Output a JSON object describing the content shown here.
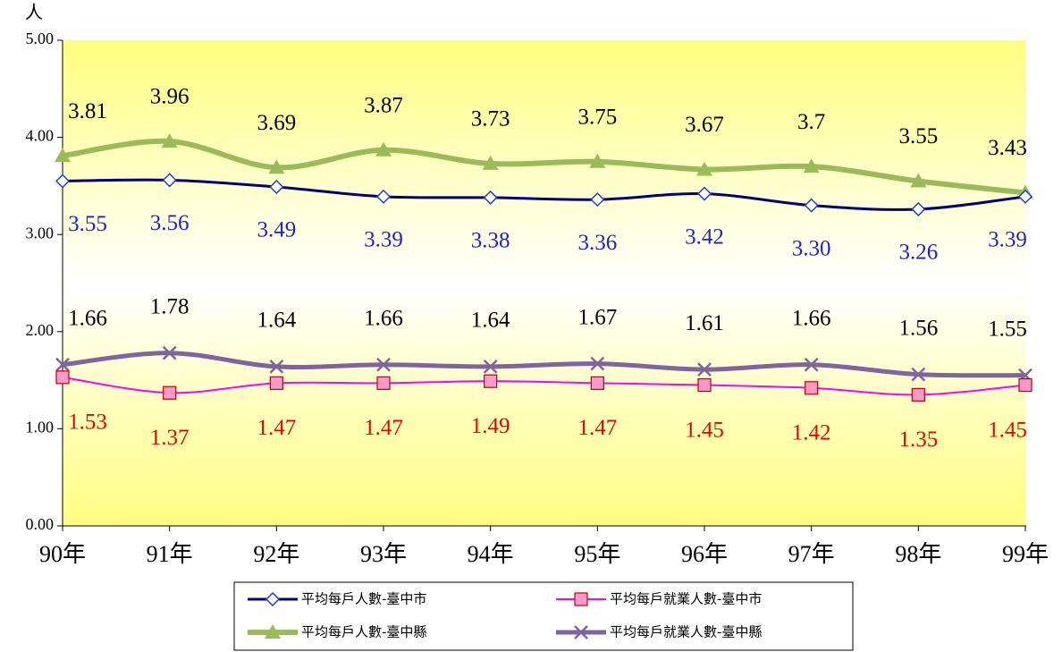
{
  "chart_data": {
    "type": "line",
    "y_axis_label": "人",
    "categories": [
      "90年",
      "91年",
      "92年",
      "93年",
      "94年",
      "95年",
      "96年",
      "97年",
      "98年",
      "99年"
    ],
    "ylim": [
      0,
      5
    ],
    "yticks": [
      {
        "value": 0,
        "label": "0.00"
      },
      {
        "value": 1,
        "label": "1.00"
      },
      {
        "value": 2,
        "label": "2.00"
      },
      {
        "value": 3,
        "label": "3.00"
      },
      {
        "value": 4,
        "label": "4.00"
      },
      {
        "value": 5,
        "label": "5.00"
      }
    ],
    "series": [
      {
        "name": "平均每戶人數-臺中市",
        "color": "#000080",
        "marker": "diamond",
        "values": [
          3.55,
          3.56,
          3.49,
          3.39,
          3.38,
          3.36,
          3.42,
          3.3,
          3.26,
          3.39
        ],
        "value_labels": [
          "3.55",
          "3.56",
          "3.49",
          "3.39",
          "3.38",
          "3.36",
          "3.42",
          "3.30",
          "3.26",
          "3.39"
        ]
      },
      {
        "name": "平均每戶就業人數-臺中市",
        "color": "#ff00ff",
        "marker": "square",
        "values": [
          1.53,
          1.37,
          1.47,
          1.47,
          1.49,
          1.47,
          1.45,
          1.42,
          1.35,
          1.45
        ],
        "value_labels": [
          "1.53",
          "1.37",
          "1.47",
          "1.47",
          "1.49",
          "1.47",
          "1.45",
          "1.42",
          "1.35",
          "1.45"
        ]
      },
      {
        "name": "平均每戶人數-臺中縣",
        "color": "#9bbb59",
        "marker": "triangle",
        "values": [
          3.81,
          3.96,
          3.69,
          3.87,
          3.73,
          3.75,
          3.67,
          3.7,
          3.55,
          3.43
        ],
        "value_labels": [
          "3.81",
          "3.96",
          "3.69",
          "3.87",
          "3.73",
          "3.75",
          "3.67",
          "3.7",
          "3.55",
          "3.43"
        ]
      },
      {
        "name": "平均每戶就業人數-臺中縣",
        "color": "#8064a2",
        "marker": "x",
        "values": [
          1.66,
          1.78,
          1.64,
          1.66,
          1.64,
          1.67,
          1.61,
          1.66,
          1.56,
          1.55
        ],
        "value_labels": [
          "1.66",
          "1.78",
          "1.64",
          "1.66",
          "1.64",
          "1.67",
          "1.61",
          "1.66",
          "1.56",
          "1.55"
        ]
      }
    ]
  }
}
